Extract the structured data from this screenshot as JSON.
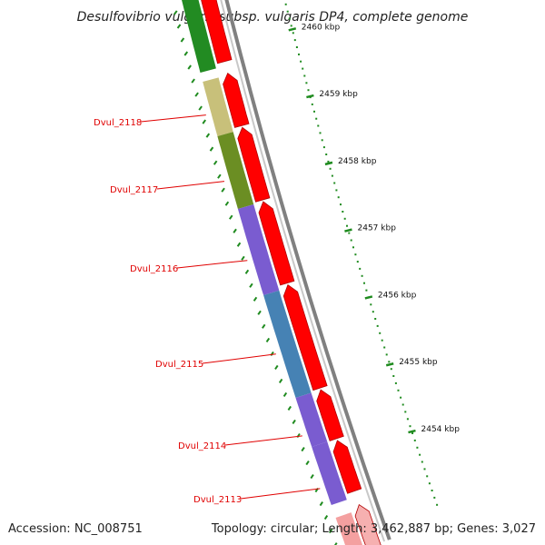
{
  "title": "Desulfovibrio vulgaris subsp. vulgaris DP4, complete genome",
  "footer": {
    "accession": "Accession: NC_008751",
    "topology": "Topology: circular; Length: 3,462,887 bp; Genes: 3,027"
  },
  "genes": [
    {
      "name": "Dvul_2118",
      "color": "#c8c07a"
    },
    {
      "name": "Dvul_2117",
      "color": "#6b8e23"
    },
    {
      "name": "Dvul_2116",
      "color": "#7a5cd0"
    },
    {
      "name": "Dvul_2115",
      "color": "#4682b4"
    },
    {
      "name": "Dvul_2114",
      "color": "#7a5cd0"
    },
    {
      "name": "Dvul_2113",
      "color": "#7a5cd0"
    }
  ],
  "scale_ticks": [
    "2460 kbp",
    "2459 kbp",
    "2458 kbp",
    "2457 kbp",
    "2456 kbp",
    "2455 kbp",
    "2454 kbp"
  ],
  "colors": {
    "cds_arrow": "#ff0000",
    "backbone": "#808080",
    "tick": "#1f8b1f",
    "label": "#e00000",
    "upstream_gene": "#228b22"
  }
}
